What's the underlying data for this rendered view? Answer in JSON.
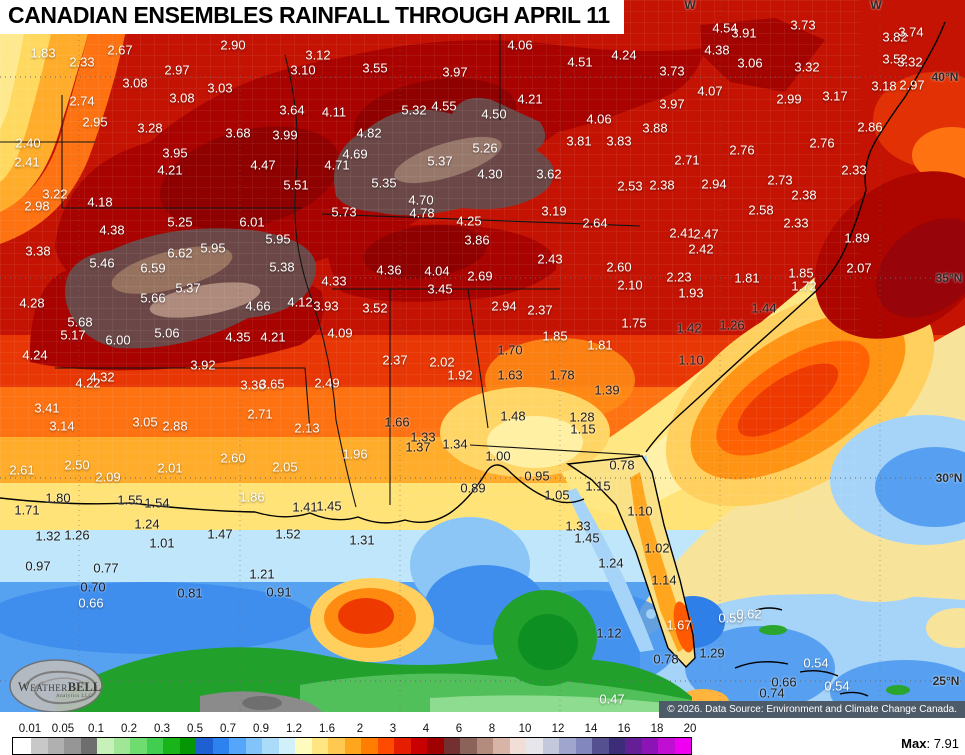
{
  "title": "CANADIAN ENSEMBLES RAINFALL THROUGH APRIL 11",
  "copyright": "© 2026. Data Source: Environment and Climate Change Canada.",
  "logo": {
    "word1": "Weather",
    "word2": "BELL",
    "sub": "Analytics LLC"
  },
  "legend": {
    "max_label": "Max",
    "max_sep": ": ",
    "max_value": "7.91",
    "ticks": [
      "0.01",
      "0.05",
      "0.1",
      "0.2",
      "0.3",
      "0.5",
      "0.7",
      "0.9",
      "1.2",
      "1.6",
      "2",
      "3",
      "4",
      "6",
      "8",
      "10",
      "12",
      "14",
      "16",
      "18",
      "20"
    ],
    "cells": [
      "#ffffff",
      "#c8c8c8",
      "#b0b0b0",
      "#969696",
      "#6e6e6e",
      "#c8f0b9",
      "#a0e696",
      "#6edc6e",
      "#41cd50",
      "#19b419",
      "#059605",
      "#1e5fd2",
      "#2d82f0",
      "#55a5fa",
      "#82c3fa",
      "#aadcfa",
      "#d2f0fa",
      "#fffabe",
      "#ffe682",
      "#ffc850",
      "#ffa51e",
      "#ff7d00",
      "#ff4b00",
      "#e61e00",
      "#c80000",
      "#a00000",
      "#733030",
      "#8c6359",
      "#b48c7d",
      "#d7b4a5",
      "#f0ded7",
      "#e6e6eb",
      "#c3c8dc",
      "#a0a5cd",
      "#8287be",
      "#55508f",
      "#3d2d78",
      "#641e96",
      "#8c14b4",
      "#be0fd2",
      "#f000f0"
    ]
  },
  "map": {
    "graticule_labels": [
      [
        "40°N",
        945,
        77
      ],
      [
        "35°N",
        949,
        278
      ],
      [
        "30°N",
        949,
        478
      ],
      [
        "25°N",
        946,
        681
      ],
      [
        "W",
        690,
        5
      ],
      [
        "W",
        876,
        5
      ]
    ],
    "value_labels": [
      [
        "1.83",
        43,
        53,
        "w"
      ],
      [
        "2.67",
        120,
        50,
        "w"
      ],
      [
        "2.90",
        233,
        45,
        "w"
      ],
      [
        "2.33",
        82,
        62,
        "w"
      ],
      [
        "2.97",
        177,
        70,
        "w"
      ],
      [
        "3.10",
        303,
        70,
        "w"
      ],
      [
        "3.08",
        135,
        83,
        "w"
      ],
      [
        "3.03",
        220,
        88,
        "w"
      ],
      [
        "3.08",
        182,
        98,
        "w"
      ],
      [
        "2.74",
        82,
        101,
        "w"
      ],
      [
        "3.64",
        292,
        110,
        "w"
      ],
      [
        "2.95",
        95,
        122,
        "w"
      ],
      [
        "3.28",
        150,
        128,
        "w"
      ],
      [
        "3.68",
        238,
        133,
        "w"
      ],
      [
        "3.99",
        285,
        135,
        "w"
      ],
      [
        "2.40",
        28,
        143,
        "w"
      ],
      [
        "3.95",
        175,
        153,
        "w"
      ],
      [
        "2.41",
        27,
        162,
        "w"
      ],
      [
        "4.21",
        170,
        170,
        "w"
      ],
      [
        "4.47",
        263,
        165,
        "w"
      ],
      [
        "5.51",
        296,
        185,
        "w"
      ],
      [
        "3.22",
        55,
        194,
        "w"
      ],
      [
        "3.12",
        318,
        55,
        "w"
      ],
      [
        "3.55",
        375,
        68,
        "w"
      ],
      [
        "3.97",
        455,
        72,
        "w"
      ],
      [
        "4.06",
        520,
        45,
        "w"
      ],
      [
        "4.51",
        580,
        62,
        "w"
      ],
      [
        "4.24",
        624,
        55,
        "w"
      ],
      [
        "4.21",
        530,
        99,
        "w"
      ],
      [
        "5.32",
        414,
        110,
        "w"
      ],
      [
        "4.55",
        444,
        106,
        "w"
      ],
      [
        "4.50",
        494,
        114,
        "w"
      ],
      [
        "4.06",
        599,
        119,
        "w"
      ],
      [
        "4.11",
        334,
        112,
        "w"
      ],
      [
        "4.82",
        369,
        133,
        "w"
      ],
      [
        "3.81",
        579,
        141,
        "w"
      ],
      [
        "3.83",
        619,
        141,
        "w"
      ],
      [
        "4.69",
        355,
        154,
        "w"
      ],
      [
        "4.71",
        337,
        165,
        "w"
      ],
      [
        "5.26",
        485,
        148,
        "w"
      ],
      [
        "5.37",
        440,
        161,
        "w"
      ],
      [
        "5.35",
        384,
        183,
        "w"
      ],
      [
        "4.30",
        490,
        174,
        "w"
      ],
      [
        "3.62",
        549,
        174,
        "w"
      ],
      [
        "2.53",
        630,
        186,
        "w"
      ],
      [
        "4.54",
        725,
        28,
        "w"
      ],
      [
        "3.91",
        744,
        33,
        "w"
      ],
      [
        "3.73",
        803,
        25,
        "w"
      ],
      [
        "3.82",
        895,
        37,
        "w"
      ],
      [
        "3.74",
        911,
        32,
        "w"
      ],
      [
        "4.38",
        717,
        50,
        "w"
      ],
      [
        "3.06",
        750,
        63,
        "w"
      ],
      [
        "3.32",
        807,
        67,
        "w"
      ],
      [
        "3.52",
        895,
        59,
        "w"
      ],
      [
        "3.32",
        910,
        62,
        "w"
      ],
      [
        "3.73",
        672,
        71,
        "w"
      ],
      [
        "4.07",
        710,
        91,
        "w"
      ],
      [
        "3.18",
        884,
        86,
        "w"
      ],
      [
        "2.97",
        912,
        85,
        "w"
      ],
      [
        "3.97",
        672,
        104,
        "w"
      ],
      [
        "2.99",
        789,
        99,
        "w"
      ],
      [
        "3.17",
        835,
        96,
        "w"
      ],
      [
        "3.88",
        655,
        128,
        "w"
      ],
      [
        "2.86",
        870,
        127,
        "w"
      ],
      [
        "2.76",
        822,
        143,
        "w"
      ],
      [
        "2.71",
        687,
        160,
        "w"
      ],
      [
        "2.76",
        742,
        150,
        "w"
      ],
      [
        "2.33",
        854,
        170,
        "w"
      ],
      [
        "2.38",
        662,
        185,
        "w"
      ],
      [
        "2.94",
        714,
        184,
        "w"
      ],
      [
        "2.73",
        780,
        180,
        "w"
      ],
      [
        "2.38",
        804,
        195,
        "w"
      ],
      [
        "2.98",
        37,
        206,
        "w"
      ],
      [
        "4.18",
        100,
        202,
        "w"
      ],
      [
        "5.25",
        180,
        222,
        "w"
      ],
      [
        "6.01",
        252,
        222,
        "w"
      ],
      [
        "4.38",
        112,
        230,
        "w"
      ],
      [
        "5.95",
        278,
        239,
        "w"
      ],
      [
        "3.38",
        38,
        251,
        "w"
      ],
      [
        "6.62",
        180,
        253,
        "w"
      ],
      [
        "5.95",
        213,
        248,
        "w"
      ],
      [
        "5.46",
        102,
        263,
        "w"
      ],
      [
        "6.59",
        153,
        268,
        "w"
      ],
      [
        "5.38",
        282,
        267,
        "w"
      ],
      [
        "5.37",
        188,
        288,
        "w"
      ],
      [
        "5.66",
        153,
        298,
        "w"
      ],
      [
        "4.28",
        32,
        303,
        "w"
      ],
      [
        "4.66",
        258,
        306,
        "w"
      ],
      [
        "4.12",
        300,
        302,
        "w"
      ],
      [
        "5.68",
        80,
        322,
        "w"
      ],
      [
        "5.17",
        73,
        335,
        "w"
      ],
      [
        "6.00",
        118,
        340,
        "w"
      ],
      [
        "5.06",
        167,
        333,
        "w"
      ],
      [
        "4.35",
        238,
        337,
        "w"
      ],
      [
        "4.21",
        273,
        337,
        "w"
      ],
      [
        "4.24",
        35,
        355,
        "w"
      ],
      [
        "3.92",
        203,
        365,
        "w"
      ],
      [
        "5.73",
        344,
        212,
        "w"
      ],
      [
        "4.70",
        421,
        200,
        "w"
      ],
      [
        "4.78",
        422,
        213,
        "w"
      ],
      [
        "4.25",
        469,
        221,
        "w"
      ],
      [
        "3.19",
        554,
        211,
        "w"
      ],
      [
        "2.64",
        595,
        223,
        "w"
      ],
      [
        "3.86",
        477,
        240,
        "w"
      ],
      [
        "2.43",
        550,
        259,
        "w"
      ],
      [
        "4.36",
        389,
        270,
        "w"
      ],
      [
        "4.04",
        437,
        271,
        "w"
      ],
      [
        "2.69",
        480,
        276,
        "w"
      ],
      [
        "2.60",
        619,
        267,
        "w"
      ],
      [
        "4.33",
        334,
        281,
        "w"
      ],
      [
        "3.45",
        440,
        289,
        "w"
      ],
      [
        "2.10",
        630,
        285,
        "w"
      ],
      [
        "3.93",
        326,
        306,
        "w"
      ],
      [
        "3.52",
        375,
        308,
        "w"
      ],
      [
        "2.94",
        504,
        306,
        "w"
      ],
      [
        "2.37",
        540,
        310,
        "w"
      ],
      [
        "1.75",
        634,
        323,
        "w"
      ],
      [
        "4.09",
        340,
        333,
        "w"
      ],
      [
        "1.85",
        555,
        336,
        "w"
      ],
      [
        "1.70",
        510,
        350,
        "k"
      ],
      [
        "1.81",
        600,
        345,
        "w"
      ],
      [
        "2.37",
        395,
        360,
        "w"
      ],
      [
        "2.02",
        442,
        362,
        "w"
      ],
      [
        "2.58",
        761,
        210,
        "w"
      ],
      [
        "2.33",
        796,
        223,
        "w"
      ],
      [
        "2.41",
        682,
        233,
        "w"
      ],
      [
        "2.47",
        706,
        234,
        "w"
      ],
      [
        "2.42",
        701,
        249,
        "w"
      ],
      [
        "1.89",
        857,
        238,
        "w"
      ],
      [
        "2.07",
        859,
        268,
        "w"
      ],
      [
        "2.23",
        679,
        277,
        "w"
      ],
      [
        "1.81",
        747,
        278,
        "w"
      ],
      [
        "1.85",
        801,
        273,
        "w"
      ],
      [
        "1.72",
        804,
        286,
        "w"
      ],
      [
        "1.93",
        691,
        293,
        "w"
      ],
      [
        "1.44",
        764,
        308,
        "k"
      ],
      [
        "1.42",
        689,
        328,
        "k"
      ],
      [
        "1.26",
        732,
        325,
        "k"
      ],
      [
        "1.10",
        691,
        360,
        "k"
      ],
      [
        "4.22",
        88,
        383,
        "w"
      ],
      [
        "4.32",
        102,
        377,
        "w"
      ],
      [
        "3.36",
        253,
        385,
        "w"
      ],
      [
        "3.65",
        272,
        384,
        "w"
      ],
      [
        "3.41",
        47,
        408,
        "w"
      ],
      [
        "3.14",
        62,
        426,
        "w"
      ],
      [
        "3.05",
        145,
        422,
        "w"
      ],
      [
        "2.88",
        175,
        426,
        "w"
      ],
      [
        "2.71",
        260,
        414,
        "w"
      ],
      [
        "2.13",
        307,
        428,
        "w"
      ],
      [
        "2.50",
        77,
        465,
        "w"
      ],
      [
        "2.61",
        22,
        470,
        "w"
      ],
      [
        "2.09",
        108,
        477,
        "w"
      ],
      [
        "2.01",
        170,
        468,
        "w"
      ],
      [
        "2.60",
        233,
        458,
        "w"
      ],
      [
        "2.05",
        285,
        467,
        "w"
      ],
      [
        "1.80",
        58,
        498,
        "k"
      ],
      [
        "1.71",
        27,
        510,
        "k"
      ],
      [
        "1.55",
        130,
        500,
        "k"
      ],
      [
        "1.54",
        157,
        503,
        "k"
      ],
      [
        "1.86",
        252,
        497,
        "w"
      ],
      [
        "1.41",
        305,
        507,
        "k"
      ],
      [
        "1.24",
        147,
        524,
        "k"
      ],
      [
        "1.32",
        48,
        536,
        "k"
      ],
      [
        "1.26",
        77,
        535,
        "k"
      ],
      [
        "1.47",
        220,
        534,
        "k"
      ],
      [
        "1.52",
        288,
        534,
        "k"
      ],
      [
        "2.49",
        327,
        383,
        "w"
      ],
      [
        "1.92",
        460,
        375,
        "w"
      ],
      [
        "1.63",
        510,
        375,
        "k"
      ],
      [
        "1.78",
        562,
        375,
        "k"
      ],
      [
        "1.39",
        607,
        390,
        "k"
      ],
      [
        "1.66",
        397,
        422,
        "k"
      ],
      [
        "1.48",
        513,
        416,
        "k"
      ],
      [
        "1.28",
        582,
        417,
        "k"
      ],
      [
        "1.15",
        583,
        429,
        "k"
      ],
      [
        "1.33",
        423,
        437,
        "k"
      ],
      [
        "1.37",
        418,
        447,
        "k"
      ],
      [
        "1.34",
        455,
        444,
        "k"
      ],
      [
        "1.96",
        355,
        454,
        "w"
      ],
      [
        "1.00",
        498,
        456,
        "k"
      ],
      [
        "0.78",
        622,
        465,
        "k"
      ],
      [
        "0.95",
        537,
        476,
        "k"
      ],
      [
        "0.89",
        473,
        488,
        "k"
      ],
      [
        "1.05",
        557,
        495,
        "k"
      ],
      [
        "1.15",
        598,
        486,
        "k"
      ],
      [
        "1.45",
        329,
        506,
        "k"
      ],
      [
        "1.31",
        362,
        540,
        "k"
      ],
      [
        "1.10",
        640,
        511,
        "k"
      ],
      [
        "1.33",
        578,
        526,
        "k"
      ],
      [
        "1.45",
        587,
        538,
        "k"
      ],
      [
        "1.01",
        162,
        543,
        "k"
      ],
      [
        "0.97",
        38,
        566,
        "k"
      ],
      [
        "0.77",
        106,
        568,
        "k"
      ],
      [
        "0.70",
        93,
        587,
        "k"
      ],
      [
        "0.66",
        91,
        603,
        "w"
      ],
      [
        "0.81",
        190,
        593,
        "k"
      ],
      [
        "1.21",
        262,
        574,
        "k"
      ],
      [
        "0.91",
        279,
        592,
        "k"
      ],
      [
        "1.24",
        611,
        563,
        "k"
      ],
      [
        "1.02",
        657,
        548,
        "k"
      ],
      [
        "1.12",
        609,
        633,
        "k"
      ],
      [
        "0.47",
        612,
        699,
        "w"
      ],
      [
        "1.14",
        664,
        580,
        "k"
      ],
      [
        "1.67",
        679,
        625,
        "w"
      ],
      [
        "0.59",
        731,
        618,
        "w"
      ],
      [
        "0.62",
        749,
        614,
        "w"
      ],
      [
        "1.29",
        712,
        653,
        "k"
      ],
      [
        "0.78",
        666,
        659,
        "k"
      ],
      [
        "0.54",
        816,
        663,
        "w"
      ],
      [
        "0.66",
        784,
        682,
        "k"
      ],
      [
        "0.74",
        772,
        693,
        "k"
      ],
      [
        "0.54",
        837,
        686,
        "w"
      ]
    ]
  }
}
